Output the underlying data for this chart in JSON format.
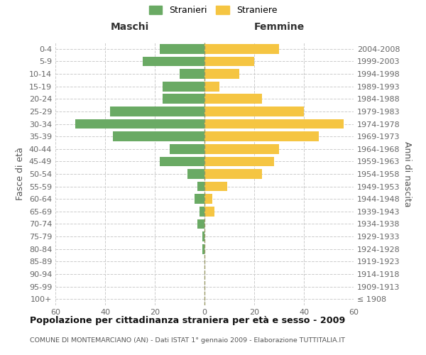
{
  "age_groups": [
    "100+",
    "95-99",
    "90-94",
    "85-89",
    "80-84",
    "75-79",
    "70-74",
    "65-69",
    "60-64",
    "55-59",
    "50-54",
    "45-49",
    "40-44",
    "35-39",
    "30-34",
    "25-29",
    "20-24",
    "15-19",
    "10-14",
    "5-9",
    "0-4"
  ],
  "birth_years": [
    "≤ 1908",
    "1909-1913",
    "1914-1918",
    "1919-1923",
    "1924-1928",
    "1929-1933",
    "1934-1938",
    "1939-1943",
    "1944-1948",
    "1949-1953",
    "1954-1958",
    "1959-1963",
    "1964-1968",
    "1969-1973",
    "1974-1978",
    "1979-1983",
    "1984-1988",
    "1989-1993",
    "1994-1998",
    "1999-2003",
    "2004-2008"
  ],
  "males": [
    0,
    0,
    0,
    0,
    1,
    1,
    3,
    2,
    4,
    3,
    7,
    18,
    14,
    37,
    52,
    38,
    17,
    17,
    10,
    25,
    18
  ],
  "females": [
    0,
    0,
    0,
    0,
    0,
    0,
    0,
    4,
    3,
    9,
    23,
    28,
    30,
    46,
    56,
    40,
    23,
    6,
    14,
    20,
    30
  ],
  "male_color": "#6aaa64",
  "female_color": "#f5c542",
  "title": "Popolazione per cittadinanza straniera per età e sesso - 2009",
  "subtitle": "COMUNE DI MONTEMARCIANO (AN) - Dati ISTAT 1° gennaio 2009 - Elaborazione TUTTITALIA.IT",
  "label_maschi": "Maschi",
  "label_femmine": "Femmine",
  "ylabel_left": "Fasce di età",
  "ylabel_right": "Anni di nascita",
  "legend_males": "Stranieri",
  "legend_females": "Straniere",
  "xlim": 60,
  "background_color": "#ffffff",
  "grid_color": "#cccccc",
  "bar_height": 0.78
}
